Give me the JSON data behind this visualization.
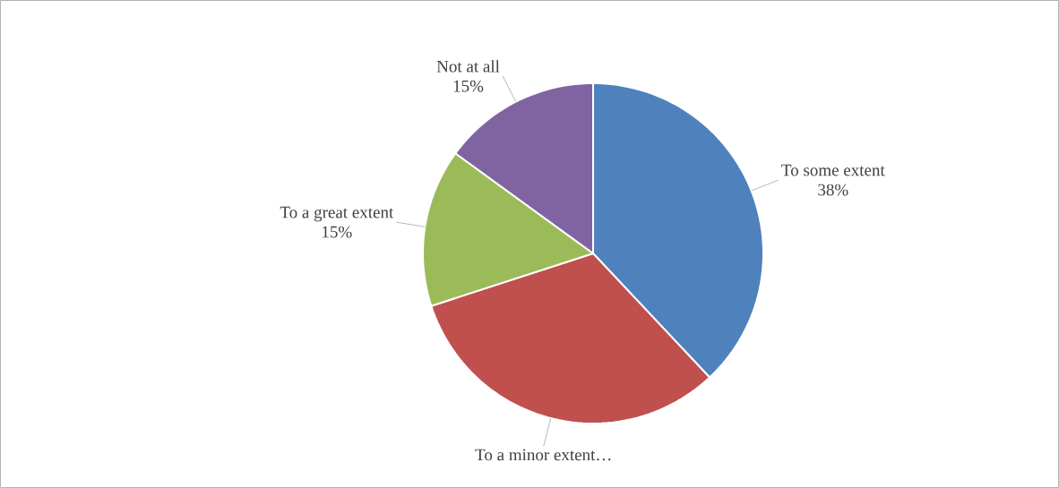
{
  "chart_data": {
    "type": "pie",
    "categories": [
      "To some extent",
      "To a minor extent…",
      "To a great extent",
      "Not at all"
    ],
    "values": [
      38,
      32,
      15,
      15
    ],
    "colors": [
      "#4f81bd",
      "#c0504d",
      "#9bbb59",
      "#8064a2"
    ],
    "value_labels": [
      "38%",
      null,
      "15%",
      "15%"
    ]
  }
}
